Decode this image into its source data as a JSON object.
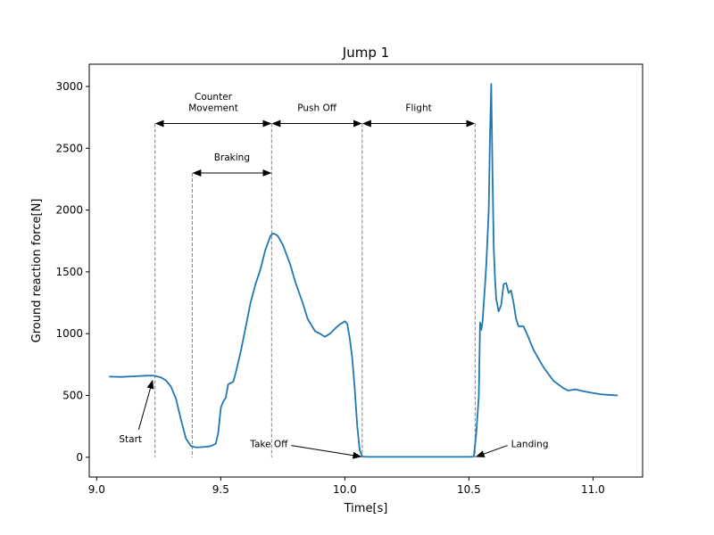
{
  "chart_data": {
    "type": "line",
    "title": "Jump 1",
    "xlabel": "Time[s]",
    "ylabel": "Ground reaction force[N]",
    "xlim": [
      8.97,
      11.2
    ],
    "ylim": [
      -160,
      3180
    ],
    "xticks": [
      9.0,
      9.5,
      10.0,
      10.5,
      11.0
    ],
    "xtick_labels": [
      "9.0",
      "9.5",
      "10.0",
      "10.5",
      "11.0"
    ],
    "yticks": [
      0,
      500,
      1000,
      1500,
      2000,
      2500,
      3000
    ],
    "ytick_labels": [
      "0",
      "500",
      "1000",
      "1500",
      "2000",
      "2500",
      "3000"
    ],
    "grid": false,
    "series_color": "#1f77b4",
    "annotation_color": "#808080",
    "series": [
      {
        "x": [
          9.05,
          9.1,
          9.15,
          9.2,
          9.23,
          9.26,
          9.28,
          9.3,
          9.32,
          9.34,
          9.36,
          9.38,
          9.4,
          9.42,
          9.44,
          9.46,
          9.48,
          9.49,
          9.5,
          9.51,
          9.52,
          9.53,
          9.54,
          9.55,
          9.56,
          9.58,
          9.6,
          9.62,
          9.64,
          9.66,
          9.68,
          9.7,
          9.71,
          9.72,
          9.73,
          9.75,
          9.78,
          9.8,
          9.83,
          9.85,
          9.88,
          9.9,
          9.92,
          9.94,
          9.96,
          9.98,
          10.0,
          10.01,
          10.02,
          10.03,
          10.04,
          10.05,
          10.06,
          10.07,
          10.1,
          10.2,
          10.3,
          10.4,
          10.5,
          10.52,
          10.53,
          10.54,
          10.545,
          10.55,
          10.555,
          10.56,
          10.565,
          10.57,
          10.58,
          10.585,
          10.59,
          10.595,
          10.6,
          10.605,
          10.61,
          10.62,
          10.63,
          10.64,
          10.65,
          10.66,
          10.67,
          10.68,
          10.69,
          10.7,
          10.72,
          10.74,
          10.76,
          10.78,
          10.8,
          10.84,
          10.88,
          10.9,
          10.93,
          10.96,
          11.0,
          11.03,
          11.06,
          11.1
        ],
        "y": [
          652,
          650,
          655,
          660,
          660,
          645,
          620,
          570,
          470,
          300,
          150,
          90,
          80,
          82,
          85,
          90,
          110,
          200,
          400,
          450,
          480,
          590,
          600,
          610,
          680,
          850,
          1050,
          1250,
          1400,
          1520,
          1680,
          1790,
          1810,
          1805,
          1790,
          1720,
          1560,
          1420,
          1250,
          1120,
          1020,
          1000,
          975,
          1000,
          1040,
          1075,
          1100,
          1080,
          960,
          800,
          550,
          250,
          60,
          5,
          3,
          3,
          3,
          3,
          3,
          5,
          200,
          500,
          1090,
          1030,
          1100,
          1250,
          1400,
          1550,
          2000,
          2600,
          3020,
          2300,
          1700,
          1450,
          1280,
          1180,
          1230,
          1400,
          1410,
          1330,
          1350,
          1250,
          1120,
          1060,
          1060,
          970,
          870,
          800,
          730,
          620,
          560,
          540,
          550,
          535,
          520,
          510,
          505,
          500
        ]
      }
    ],
    "vertical_lines": [
      {
        "x": 9.235,
        "y_top": 2700
      },
      {
        "x": 9.385,
        "y_top": 2300
      },
      {
        "x": 9.705,
        "y_top": 2700
      },
      {
        "x": 10.07,
        "y_top": 2700
      },
      {
        "x": 10.525,
        "y_top": 2700
      }
    ],
    "phase_arrows": [
      {
        "label": "Counter\nMovement",
        "x_start": 9.235,
        "x_end": 9.705,
        "y": 2700
      },
      {
        "label": "Push Off",
        "x_start": 9.705,
        "x_end": 10.07,
        "y": 2700
      },
      {
        "label": "Flight",
        "x_start": 10.07,
        "x_end": 10.525,
        "y": 2700
      },
      {
        "label": "Braking",
        "x_start": 9.385,
        "x_end": 9.705,
        "y": 2300
      }
    ],
    "point_annotations": [
      {
        "label": "Start",
        "text_x": 9.09,
        "text_y": 150,
        "point_x": 9.225,
        "point_y": 620,
        "align": "start"
      },
      {
        "label": "Take Off",
        "text_x": 9.77,
        "text_y": 110,
        "point_x": 10.065,
        "point_y": 5,
        "align": "end"
      },
      {
        "label": "Landing",
        "text_x": 10.67,
        "text_y": 110,
        "point_x": 10.53,
        "point_y": 5,
        "align": "start"
      }
    ]
  }
}
